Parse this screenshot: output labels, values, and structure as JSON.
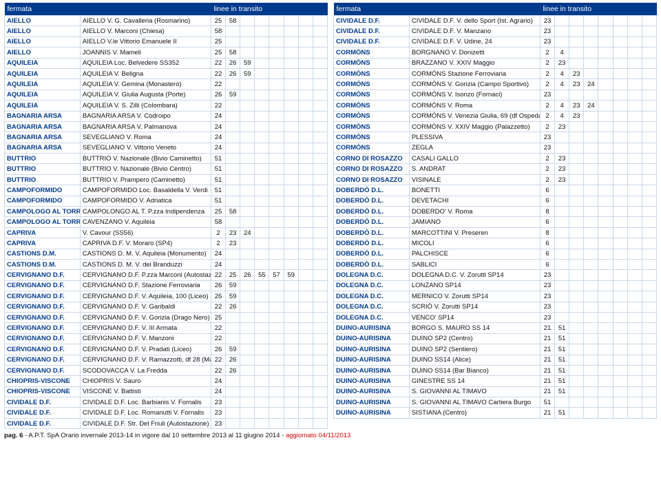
{
  "header": {
    "col1": "fermata",
    "col2": "",
    "col_transit": "linee in transito"
  },
  "transit_cols": 8,
  "footer": {
    "page_label": "pag. 6",
    "text_main": " - A.P.T. SpA Orario invernale 2013-14 in vigore dal 10 settembre 2013 al 11 giugno 2014 - ",
    "text_red": "aggiornato 04/11/2013"
  },
  "left": [
    {
      "f": "AIELLO",
      "s": "AIELLO V. G. Cavalleria (Rosmarino)",
      "t": [
        "25",
        "58"
      ]
    },
    {
      "f": "AIELLO",
      "s": "AIELLO V. Marconi (Chiesa)",
      "t": [
        "58"
      ]
    },
    {
      "f": "AIELLO",
      "s": "AIELLO V.le Vittorio Emanuele II",
      "t": [
        "25"
      ]
    },
    {
      "f": "AIELLO",
      "s": "JOANNIS V. Mameli",
      "t": [
        "25",
        "58"
      ]
    },
    {
      "f": "AQUILEIA",
      "s": "AQUILEIA Loc. Belvedere SS352",
      "t": [
        "22",
        "26",
        "59"
      ]
    },
    {
      "f": "AQUILEIA",
      "s": "AQUILEIA V. Beligna",
      "t": [
        "22",
        "26",
        "59"
      ]
    },
    {
      "f": "AQUILEIA",
      "s": "AQUILEIA V. Gemina (Monastero)",
      "t": [
        "22"
      ]
    },
    {
      "f": "AQUILEIA",
      "s": "AQUILEIA V. Giulia Augusta (Porte)",
      "t": [
        "26",
        "59"
      ]
    },
    {
      "f": "AQUILEIA",
      "s": "AQUILEIA V. S. Zilli (Colombara)",
      "t": [
        "22"
      ]
    },
    {
      "f": "BAGNARIA ARSA",
      "s": "BAGNARIA ARSA V. Codroipo",
      "t": [
        "24"
      ]
    },
    {
      "f": "BAGNARIA ARSA",
      "s": "BAGNARIA ARSA V. Palmanova",
      "t": [
        "24"
      ]
    },
    {
      "f": "BAGNARIA ARSA",
      "s": "SEVEGLIANO V. Roma",
      "t": [
        "24"
      ]
    },
    {
      "f": "BAGNARIA ARSA",
      "s": "SEVEGLIANO V. Vittorio Veneto",
      "t": [
        "24"
      ]
    },
    {
      "f": "BUTTRIO",
      "s": "BUTTRIO V. Nazionale (Bivio Caminetto)",
      "t": [
        "51"
      ]
    },
    {
      "f": "BUTTRIO",
      "s": "BUTTRIO V. Nazionale (Bivio Centro)",
      "t": [
        "51"
      ]
    },
    {
      "f": "BUTTRIO",
      "s": "BUTTRIO V. Prampero (Caminetto)",
      "t": [
        "51"
      ]
    },
    {
      "f": "CAMPOFORMIDO",
      "s": "CAMPOFORMIDO Loc. Basaldella V. Verdi",
      "t": [
        "51"
      ]
    },
    {
      "f": "CAMPOFORMIDO",
      "s": "CAMPOFORMIDO V. Adriatica",
      "t": [
        "51"
      ]
    },
    {
      "f": "CAMPOLOGO AL TORRE",
      "s": "CAMPOLONGO AL T. P.zza Indipendenza",
      "t": [
        "25",
        "58"
      ]
    },
    {
      "f": "CAMPOLOGO AL TORRE",
      "s": "CAVENZANO V. Aquileia",
      "t": [
        "58"
      ]
    },
    {
      "f": "CAPRIVA",
      "s": " V. Cavour (SS56)",
      "t": [
        "2",
        "23",
        "24"
      ]
    },
    {
      "f": "CAPRIVA",
      "s": "CAPRIVA D.F. V. Moraro (SP4)",
      "t": [
        "2",
        "23"
      ]
    },
    {
      "f": "CASTIONS D.M.",
      "s": "CASTIONS D. M. V. Aquileia (Monumento)",
      "t": [
        "24"
      ]
    },
    {
      "f": "CASTIONS D.M.",
      "s": "CASTIONS D. M. V. dei Branduzzi",
      "t": [
        "24"
      ]
    },
    {
      "f": "CERVIGNANO D.F.",
      "s": "CERVIGNANO D.F. P.zza Marconi (Autostazione)",
      "t": [
        "22",
        "25",
        "26",
        "55",
        "57",
        "59"
      ]
    },
    {
      "f": "CERVIGNANO D.F.",
      "s": "CERVIGNANO D.F. Stazione Ferroviaria",
      "t": [
        "26",
        "59"
      ]
    },
    {
      "f": "CERVIGNANO D.F.",
      "s": "CERVIGNANO D.F. V. Aquileia, 100 (Liceo)",
      "t": [
        "26",
        "59"
      ]
    },
    {
      "f": "CERVIGNANO D.F.",
      "s": "CERVIGNANO D.F. V. Garibaldi",
      "t": [
        "22",
        "26"
      ]
    },
    {
      "f": "CERVIGNANO D.F.",
      "s": "CERVIGNANO D.F. V. Gorizia (Drago Nero)",
      "t": [
        "25"
      ]
    },
    {
      "f": "CERVIGNANO D.F.",
      "s": "CERVIGNANO D.F. V. III Armata",
      "t": [
        "22"
      ]
    },
    {
      "f": "CERVIGNANO D.F.",
      "s": "CERVIGNANO D.F. V. Manzoni",
      "t": [
        "22"
      ]
    },
    {
      "f": "CERVIGNANO D.F.",
      "s": "CERVIGNANO D.F. V. Pradati (Liceo)",
      "t": [
        "26",
        "59"
      ]
    },
    {
      "f": "CERVIGNANO D.F.",
      "s": "CERVIGNANO D.F. V. Ramazzotti, df 28 (Malignani)",
      "t": [
        "22",
        "26"
      ]
    },
    {
      "f": "CERVIGNANO D.F.",
      "s": "SCODOVACCA V. La Fredda",
      "t": [
        "22",
        "26"
      ]
    },
    {
      "f": "CHIOPRIS-VISCONE",
      "s": "CHIOPRIS V. Sauro",
      "t": [
        "24"
      ]
    },
    {
      "f": "CHIOPRIS-VISCONE",
      "s": "VISCONE V. Battisti",
      "t": [
        "24"
      ]
    },
    {
      "f": "CIVIDALE D.F.",
      "s": "CIVIDALE D.F. Loc. Barbianis V. Fornalis",
      "t": [
        "23"
      ]
    },
    {
      "f": "CIVIDALE D.F.",
      "s": "CIVIDALE D.F. Loc. Romanutti V. Fornalis",
      "t": [
        "23"
      ]
    },
    {
      "f": "CIVIDALE D.F.",
      "s": "CIVIDALE D.F. Str. Del Friuli (Autostazione)",
      "t": [
        "23"
      ]
    }
  ],
  "right": [
    {
      "f": "CIVIDALE D.F.",
      "s": "CIVIDALE D.F. V. dello Sport (Ist. Agrario)",
      "t": [
        "23"
      ]
    },
    {
      "f": "CIVIDALE D.F.",
      "s": "CIVIDALE D.F. V. Manzano",
      "t": [
        "23"
      ]
    },
    {
      "f": "CIVIDALE D.F.",
      "s": "CIVIDALE D.F. V. Udine, 24",
      "t": [
        "23"
      ]
    },
    {
      "f": "CORMÒNS",
      "s": "BORGNANO V. Donizetti",
      "t": [
        "2",
        "4"
      ]
    },
    {
      "f": "CORMÒNS",
      "s": "BRAZZANO V. XXIV Maggio",
      "t": [
        "2",
        "23"
      ]
    },
    {
      "f": "CORMÒNS",
      "s": "CORMÒNS Stazione Ferroviaria",
      "t": [
        "2",
        "4",
        "23"
      ]
    },
    {
      "f": "CORMÒNS",
      "s": "CORMÒNS V. Gorizia (Campo Sportivo)",
      "t": [
        "2",
        "4",
        "23",
        "24"
      ]
    },
    {
      "f": "CORMÒNS",
      "s": "CORMÒNS V. Isonzo (Fornaci)",
      "t": [
        "23"
      ]
    },
    {
      "f": "CORMÒNS",
      "s": "CORMÒNS V. Roma",
      "t": [
        "2",
        "4",
        "23",
        "24"
      ]
    },
    {
      "f": "CORMÒNS",
      "s": "CORMÒNS V. Venezia Giulia, 69 (df Ospedale)",
      "t": [
        "2",
        "4",
        "23"
      ]
    },
    {
      "f": "CORMÒNS",
      "s": "CORMÒNS V. XXIV Maggio (Palazzetto)",
      "t": [
        "2",
        "23"
      ]
    },
    {
      "f": "CORMÒNS",
      "s": "PLESSIVA",
      "t": [
        "23"
      ]
    },
    {
      "f": "CORMÒNS",
      "s": "ZEGLA",
      "t": [
        "23"
      ]
    },
    {
      "f": "CORNO DI ROSAZZO",
      "s": "CASALI GALLO",
      "t": [
        "2",
        "23"
      ]
    },
    {
      "f": "CORNO DI ROSAZZO",
      "s": "S. ANDRAT",
      "t": [
        "2",
        "23"
      ]
    },
    {
      "f": "CORNO DI ROSAZZO",
      "s": "VISINALE",
      "t": [
        "2",
        "23"
      ]
    },
    {
      "f": "DOBERDÒ D.L.",
      "s": "BONETTI",
      "t": [
        "6"
      ]
    },
    {
      "f": "DOBERDÒ D.L.",
      "s": "DEVETACHI",
      "t": [
        "6"
      ]
    },
    {
      "f": "DOBERDÒ D.L.",
      "s": "DOBERDO' V. Roma",
      "t": [
        "8"
      ]
    },
    {
      "f": "DOBERDÒ D.L.",
      "s": "JAMIANO",
      "t": [
        "6"
      ]
    },
    {
      "f": "DOBERDÒ D.L.",
      "s": "MARCOTTINI V. Preseren",
      "t": [
        "8"
      ]
    },
    {
      "f": "DOBERDÒ D.L.",
      "s": "MICOLI",
      "t": [
        "6"
      ]
    },
    {
      "f": "DOBERDÒ D.L.",
      "s": "PALCHISCE",
      "t": [
        "6"
      ]
    },
    {
      "f": "DOBERDÒ D.L.",
      "s": "SABLICI",
      "t": [
        "6"
      ]
    },
    {
      "f": "DOLEGNA D.C.",
      "s": "DOLEGNA D.C. V. Zorutti SP14",
      "t": [
        "23"
      ]
    },
    {
      "f": "DOLEGNA D.C.",
      "s": "LONZANO SP14",
      "t": [
        "23"
      ]
    },
    {
      "f": "DOLEGNA D.C.",
      "s": "MERNICO V. Zorutti SP14",
      "t": [
        "23"
      ]
    },
    {
      "f": "DOLEGNA D.C.",
      "s": "SCRIÒ V. Zorutti SP14",
      "t": [
        "23"
      ]
    },
    {
      "f": "DOLEGNA D.C.",
      "s": "VENCO' SP14",
      "t": [
        "23"
      ]
    },
    {
      "f": "DUINO-AURISINA",
      "s": "BORGO S. MAURO SS 14",
      "t": [
        "21",
        "51"
      ]
    },
    {
      "f": "DUINO-AURISINA",
      "s": "DUINO SP2 (Centro)",
      "t": [
        "21",
        "51"
      ]
    },
    {
      "f": "DUINO-AURISINA",
      "s": "DUINO SP2 (Sentiero)",
      "t": [
        "21",
        "51"
      ]
    },
    {
      "f": "DUINO-AURISINA",
      "s": "DUINO SS14 (Alice)",
      "t": [
        "21",
        "51"
      ]
    },
    {
      "f": "DUINO-AURISINA",
      "s": "DUINO SS14 (Bar Bianco)",
      "t": [
        "21",
        "51"
      ]
    },
    {
      "f": "DUINO-AURISINA",
      "s": "GINESTRE SS 14",
      "t": [
        "21",
        "51"
      ]
    },
    {
      "f": "DUINO-AURISINA",
      "s": "S. GIOVANNI AL TIMAVO",
      "t": [
        "21",
        "51"
      ]
    },
    {
      "f": "DUINO-AURISINA",
      "s": "S. GIOVANNI AL TIMAVO Cartiera Burgo",
      "t": [
        "51"
      ]
    },
    {
      "f": "DUINO-AURISINA",
      "s": "SISTIANA (Centro)",
      "t": [
        "21",
        "51"
      ]
    }
  ]
}
